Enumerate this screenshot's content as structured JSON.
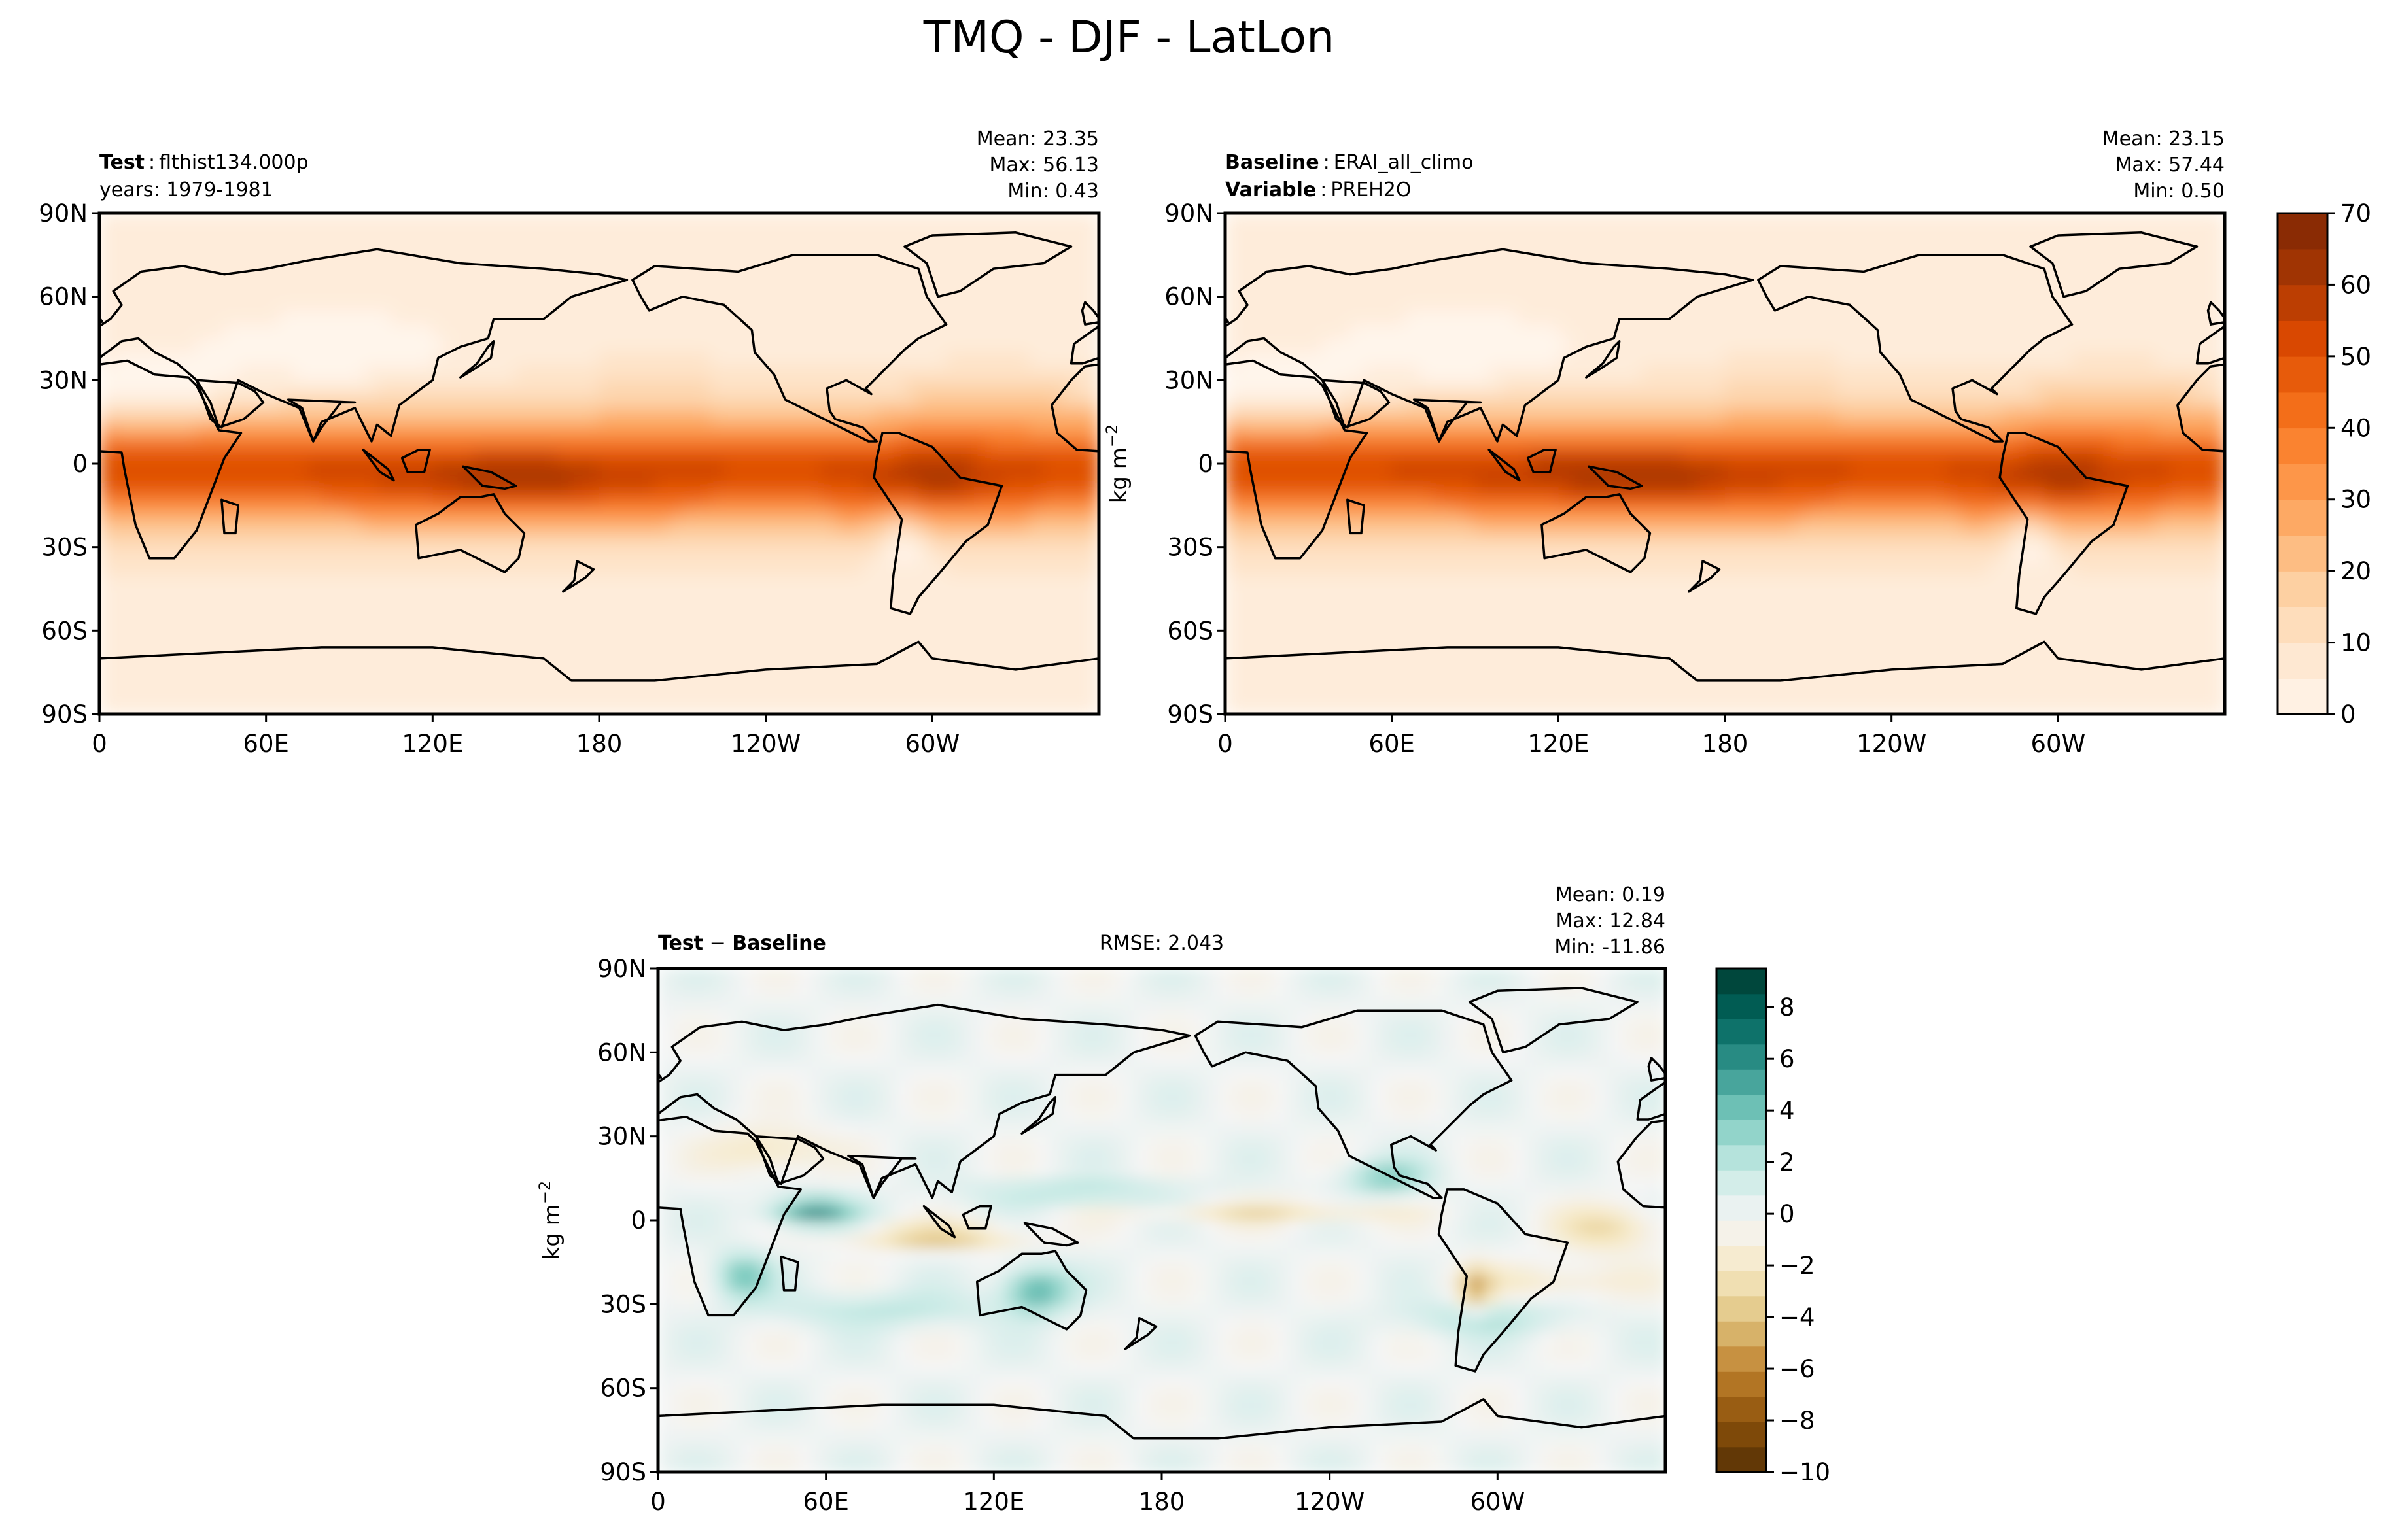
{
  "figure": {
    "title": "TMQ - DJF - LatLon"
  },
  "chart_data": [
    {
      "type": "heatmap",
      "panel": "test",
      "label_bold": "Test",
      "label_value": "flthist134.000p",
      "years": "years: 1979-1981",
      "stats": {
        "mean": "Mean: 23.35",
        "max": "Max: 56.13",
        "min": "Min:  0.43"
      },
      "x_ticks": [
        "0",
        "60E",
        "120E",
        "180",
        "120W",
        "60W"
      ],
      "y_ticks": [
        "90N",
        "60N",
        "30N",
        "0",
        "30S",
        "60S",
        "90S"
      ],
      "xlim": [
        0,
        360
      ],
      "ylim": [
        -90,
        90
      ],
      "colormap": "Oranges",
      "vmin": 0,
      "vmax": 70
    },
    {
      "type": "heatmap",
      "panel": "baseline",
      "label_bold": "Baseline",
      "label_value": "ERAI_all_climo",
      "variable_bold": "Variable",
      "variable_value": "PREH2O",
      "stats": {
        "mean": "Mean: 23.15",
        "max": "Max: 57.44",
        "min": "Min:  0.50"
      },
      "x_ticks": [
        "0",
        "60E",
        "120E",
        "180",
        "120W",
        "60W"
      ],
      "y_ticks": [
        "90N",
        "60N",
        "30N",
        "0",
        "30S",
        "60S",
        "90S"
      ],
      "ylabel": "kg m",
      "ylabel_sup": "−2",
      "colorbar": {
        "ticks": [
          "0",
          "10",
          "20",
          "30",
          "40",
          "50",
          "60",
          "70"
        ],
        "values": [
          0,
          10,
          20,
          30,
          40,
          50,
          60,
          70
        ],
        "levels": 14
      },
      "xlim": [
        0,
        360
      ],
      "ylim": [
        -90,
        90
      ],
      "colormap": "Oranges",
      "vmin": 0,
      "vmax": 70
    },
    {
      "type": "heatmap",
      "panel": "difference",
      "label_bold": "Test",
      "label_op": " − ",
      "label_bold2": "Baseline",
      "rmse": "RMSE: 2.043",
      "stats": {
        "mean": "Mean:  0.19",
        "max": "Max: 12.84",
        "min": "Min: -11.86"
      },
      "x_ticks": [
        "0",
        "60E",
        "120E",
        "180",
        "120W",
        "60W"
      ],
      "y_ticks": [
        "90N",
        "60N",
        "30N",
        "0",
        "30S",
        "60S",
        "90S"
      ],
      "ylabel": "kg m",
      "ylabel_sup": "−2",
      "colorbar": {
        "ticks": [
          "8",
          "6",
          "4",
          "2",
          "0",
          "−2",
          "−4",
          "−6",
          "−8",
          "−10"
        ],
        "values": [
          8,
          6,
          4,
          2,
          0,
          -2,
          -4,
          -6,
          -8,
          -10
        ],
        "levels": 20
      },
      "xlim": [
        0,
        360
      ],
      "ylim": [
        -90,
        90
      ],
      "colormap": "BrBG",
      "vmin": -10,
      "vmax": 9.5
    }
  ],
  "colors": {
    "oranges": [
      "#fff5eb",
      "#fee6ce",
      "#fdd0a2",
      "#fdae6b",
      "#fd8d3c",
      "#f16913",
      "#d94801",
      "#a63603",
      "#7f2704"
    ],
    "brbg": [
      "#543005",
      "#8c510a",
      "#bf812d",
      "#dfc27d",
      "#f6e8c3",
      "#f5f5f5",
      "#c7eae5",
      "#80cdc1",
      "#35978f",
      "#01665e",
      "#003c30"
    ],
    "coast": "#000000"
  }
}
